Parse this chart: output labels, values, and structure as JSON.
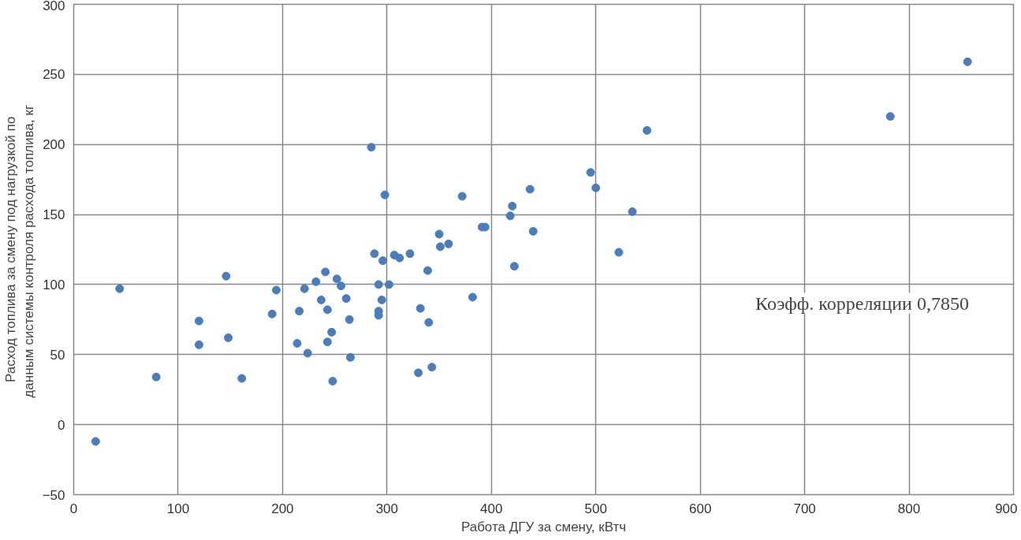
{
  "chart_data": {
    "type": "scatter",
    "xlabel": "Работа ДГУ за смену, кВтч",
    "ylabel": "Расход топлива за смену под нагрузкой по\nданным системы контроля  расхода топлива, кг",
    "annotations": [
      "Коэфф. корреляции 0,7850"
    ],
    "xlim": [
      0,
      900
    ],
    "xticks": [
      0,
      100,
      200,
      300,
      400,
      500,
      600,
      700,
      800,
      900
    ],
    "ylim": [
      -50,
      300
    ],
    "yticks": [
      -50,
      0,
      50,
      100,
      150,
      200,
      250,
      300
    ],
    "grid": true,
    "marker": "circle",
    "series": [
      {
        "color": "#4a7ebb",
        "x": [
          21,
          44,
          79,
          120,
          120,
          146,
          148,
          161,
          190,
          194,
          214,
          216,
          221,
          224,
          232,
          237,
          241,
          243,
          243,
          247,
          248,
          252,
          256,
          261,
          264,
          265,
          285,
          288,
          292,
          292,
          292,
          295,
          296,
          298,
          302,
          307,
          312,
          322,
          330,
          332,
          339,
          340,
          343,
          350,
          351,
          359,
          372,
          382,
          391,
          394,
          418,
          420,
          422,
          437,
          440,
          495,
          500,
          522,
          535,
          549,
          782,
          856
        ],
        "values": [
          -12,
          97,
          34,
          74,
          57,
          106,
          62,
          33,
          79,
          96,
          58,
          81,
          97,
          51,
          102,
          89,
          109,
          59,
          82,
          66,
          31,
          104,
          99,
          90,
          75,
          48,
          198,
          122,
          100,
          81,
          78,
          89,
          117,
          164,
          100,
          121,
          119,
          122,
          37,
          83,
          110,
          73,
          41,
          136,
          127,
          129,
          163,
          91,
          141,
          141,
          149,
          156,
          113,
          168,
          138,
          180,
          169,
          123,
          152,
          210,
          220,
          259
        ]
      }
    ]
  }
}
